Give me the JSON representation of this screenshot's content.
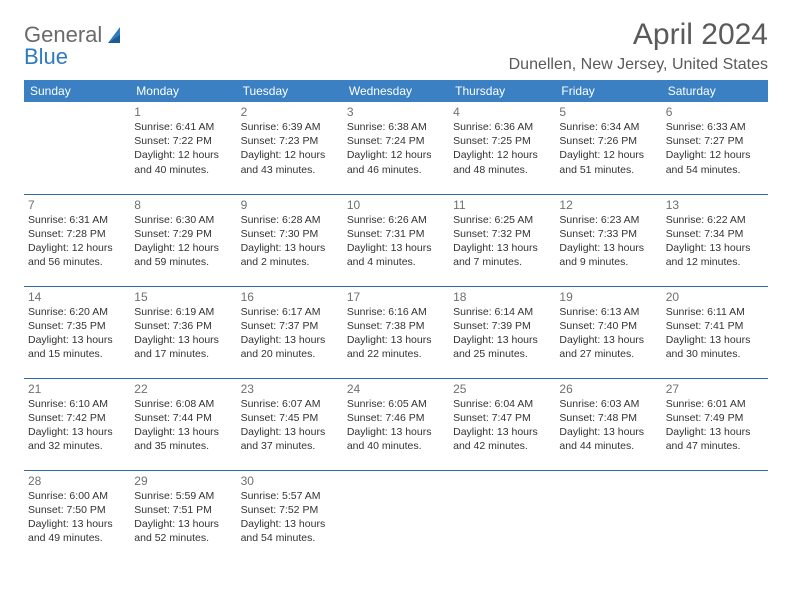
{
  "brand": {
    "part1": "General",
    "part2": "Blue"
  },
  "title": {
    "month": "April 2024",
    "location": "Dunellen, New Jersey, United States"
  },
  "colors": {
    "header_bg": "#3a80c3",
    "header_text": "#ffffff",
    "rule": "#2e6ba5",
    "text": "#333333",
    "muted": "#707070",
    "brand_gray": "#6a6a6a",
    "brand_blue": "#2f7ac0",
    "page_bg": "#ffffff"
  },
  "fonts": {
    "base_pt": 10.5,
    "daynum_pt": 12,
    "title_pt": 30,
    "location_pt": 16,
    "header_pt": 12,
    "logo_pt": 22
  },
  "day_labels": [
    "Sunday",
    "Monday",
    "Tuesday",
    "Wednesday",
    "Thursday",
    "Friday",
    "Saturday"
  ],
  "weeks": [
    [
      null,
      {
        "n": "1",
        "sr": "Sunrise: 6:41 AM",
        "ss": "Sunset: 7:22 PM",
        "d1": "Daylight: 12 hours",
        "d2": "and 40 minutes."
      },
      {
        "n": "2",
        "sr": "Sunrise: 6:39 AM",
        "ss": "Sunset: 7:23 PM",
        "d1": "Daylight: 12 hours",
        "d2": "and 43 minutes."
      },
      {
        "n": "3",
        "sr": "Sunrise: 6:38 AM",
        "ss": "Sunset: 7:24 PM",
        "d1": "Daylight: 12 hours",
        "d2": "and 46 minutes."
      },
      {
        "n": "4",
        "sr": "Sunrise: 6:36 AM",
        "ss": "Sunset: 7:25 PM",
        "d1": "Daylight: 12 hours",
        "d2": "and 48 minutes."
      },
      {
        "n": "5",
        "sr": "Sunrise: 6:34 AM",
        "ss": "Sunset: 7:26 PM",
        "d1": "Daylight: 12 hours",
        "d2": "and 51 minutes."
      },
      {
        "n": "6",
        "sr": "Sunrise: 6:33 AM",
        "ss": "Sunset: 7:27 PM",
        "d1": "Daylight: 12 hours",
        "d2": "and 54 minutes."
      }
    ],
    [
      {
        "n": "7",
        "sr": "Sunrise: 6:31 AM",
        "ss": "Sunset: 7:28 PM",
        "d1": "Daylight: 12 hours",
        "d2": "and 56 minutes."
      },
      {
        "n": "8",
        "sr": "Sunrise: 6:30 AM",
        "ss": "Sunset: 7:29 PM",
        "d1": "Daylight: 12 hours",
        "d2": "and 59 minutes."
      },
      {
        "n": "9",
        "sr": "Sunrise: 6:28 AM",
        "ss": "Sunset: 7:30 PM",
        "d1": "Daylight: 13 hours",
        "d2": "and 2 minutes."
      },
      {
        "n": "10",
        "sr": "Sunrise: 6:26 AM",
        "ss": "Sunset: 7:31 PM",
        "d1": "Daylight: 13 hours",
        "d2": "and 4 minutes."
      },
      {
        "n": "11",
        "sr": "Sunrise: 6:25 AM",
        "ss": "Sunset: 7:32 PM",
        "d1": "Daylight: 13 hours",
        "d2": "and 7 minutes."
      },
      {
        "n": "12",
        "sr": "Sunrise: 6:23 AM",
        "ss": "Sunset: 7:33 PM",
        "d1": "Daylight: 13 hours",
        "d2": "and 9 minutes."
      },
      {
        "n": "13",
        "sr": "Sunrise: 6:22 AM",
        "ss": "Sunset: 7:34 PM",
        "d1": "Daylight: 13 hours",
        "d2": "and 12 minutes."
      }
    ],
    [
      {
        "n": "14",
        "sr": "Sunrise: 6:20 AM",
        "ss": "Sunset: 7:35 PM",
        "d1": "Daylight: 13 hours",
        "d2": "and 15 minutes."
      },
      {
        "n": "15",
        "sr": "Sunrise: 6:19 AM",
        "ss": "Sunset: 7:36 PM",
        "d1": "Daylight: 13 hours",
        "d2": "and 17 minutes."
      },
      {
        "n": "16",
        "sr": "Sunrise: 6:17 AM",
        "ss": "Sunset: 7:37 PM",
        "d1": "Daylight: 13 hours",
        "d2": "and 20 minutes."
      },
      {
        "n": "17",
        "sr": "Sunrise: 6:16 AM",
        "ss": "Sunset: 7:38 PM",
        "d1": "Daylight: 13 hours",
        "d2": "and 22 minutes."
      },
      {
        "n": "18",
        "sr": "Sunrise: 6:14 AM",
        "ss": "Sunset: 7:39 PM",
        "d1": "Daylight: 13 hours",
        "d2": "and 25 minutes."
      },
      {
        "n": "19",
        "sr": "Sunrise: 6:13 AM",
        "ss": "Sunset: 7:40 PM",
        "d1": "Daylight: 13 hours",
        "d2": "and 27 minutes."
      },
      {
        "n": "20",
        "sr": "Sunrise: 6:11 AM",
        "ss": "Sunset: 7:41 PM",
        "d1": "Daylight: 13 hours",
        "d2": "and 30 minutes."
      }
    ],
    [
      {
        "n": "21",
        "sr": "Sunrise: 6:10 AM",
        "ss": "Sunset: 7:42 PM",
        "d1": "Daylight: 13 hours",
        "d2": "and 32 minutes."
      },
      {
        "n": "22",
        "sr": "Sunrise: 6:08 AM",
        "ss": "Sunset: 7:44 PM",
        "d1": "Daylight: 13 hours",
        "d2": "and 35 minutes."
      },
      {
        "n": "23",
        "sr": "Sunrise: 6:07 AM",
        "ss": "Sunset: 7:45 PM",
        "d1": "Daylight: 13 hours",
        "d2": "and 37 minutes."
      },
      {
        "n": "24",
        "sr": "Sunrise: 6:05 AM",
        "ss": "Sunset: 7:46 PM",
        "d1": "Daylight: 13 hours",
        "d2": "and 40 minutes."
      },
      {
        "n": "25",
        "sr": "Sunrise: 6:04 AM",
        "ss": "Sunset: 7:47 PM",
        "d1": "Daylight: 13 hours",
        "d2": "and 42 minutes."
      },
      {
        "n": "26",
        "sr": "Sunrise: 6:03 AM",
        "ss": "Sunset: 7:48 PM",
        "d1": "Daylight: 13 hours",
        "d2": "and 44 minutes."
      },
      {
        "n": "27",
        "sr": "Sunrise: 6:01 AM",
        "ss": "Sunset: 7:49 PM",
        "d1": "Daylight: 13 hours",
        "d2": "and 47 minutes."
      }
    ],
    [
      {
        "n": "28",
        "sr": "Sunrise: 6:00 AM",
        "ss": "Sunset: 7:50 PM",
        "d1": "Daylight: 13 hours",
        "d2": "and 49 minutes."
      },
      {
        "n": "29",
        "sr": "Sunrise: 5:59 AM",
        "ss": "Sunset: 7:51 PM",
        "d1": "Daylight: 13 hours",
        "d2": "and 52 minutes."
      },
      {
        "n": "30",
        "sr": "Sunrise: 5:57 AM",
        "ss": "Sunset: 7:52 PM",
        "d1": "Daylight: 13 hours",
        "d2": "and 54 minutes."
      },
      null,
      null,
      null,
      null
    ]
  ]
}
